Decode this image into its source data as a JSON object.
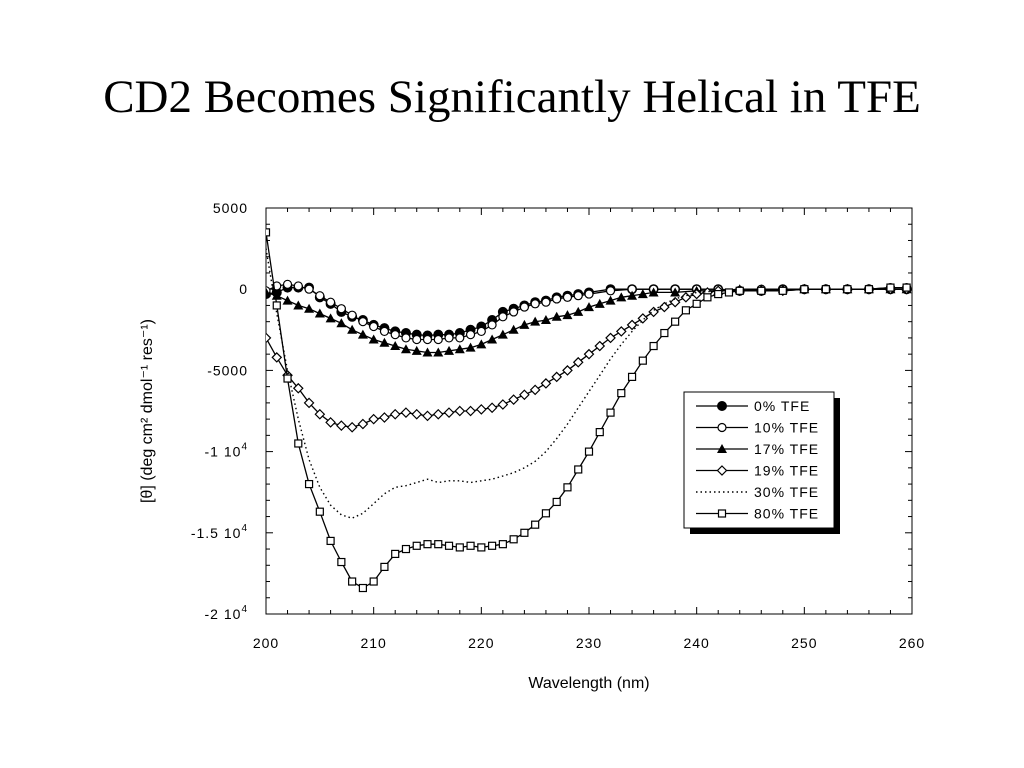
{
  "slide": {
    "title": "CD2 Becomes Significantly Helical in TFE"
  },
  "chart_data": {
    "type": "line",
    "xlabel": "Wavelength (nm)",
    "ylabel": "[θ] (deg cm² dmol⁻¹ res⁻¹)",
    "xlim": [
      200,
      260
    ],
    "ylim": [
      -20000,
      5000
    ],
    "x_ticks": [
      {
        "value": 200,
        "label": "200"
      },
      {
        "value": 210,
        "label": "210"
      },
      {
        "value": 220,
        "label": "220"
      },
      {
        "value": 230,
        "label": "230"
      },
      {
        "value": 240,
        "label": "240"
      },
      {
        "value": 250,
        "label": "250"
      },
      {
        "value": 260,
        "label": "260"
      }
    ],
    "y_ticks": [
      {
        "value": 5000,
        "label": "5000"
      },
      {
        "value": 0,
        "label": "0"
      },
      {
        "value": -5000,
        "label": "-5000"
      },
      {
        "value": -10000,
        "label": "-1 10",
        "sup": "4"
      },
      {
        "value": -15000,
        "label": "-1.5 10",
        "sup": "4"
      },
      {
        "value": -20000,
        "label": "-2 10",
        "sup": "4"
      }
    ],
    "grid": false,
    "legend_position": "right",
    "series": [
      {
        "name": "0% TFE",
        "marker": "filled-circle",
        "line": "solid",
        "points": [
          [
            200,
            -300
          ],
          [
            201,
            -200
          ],
          [
            202,
            100
          ],
          [
            203,
            100
          ],
          [
            204,
            100
          ],
          [
            205,
            -500
          ],
          [
            206,
            -900
          ],
          [
            207,
            -1400
          ],
          [
            208,
            -1700
          ],
          [
            209,
            -1900
          ],
          [
            210,
            -2200
          ],
          [
            211,
            -2400
          ],
          [
            212,
            -2600
          ],
          [
            213,
            -2700
          ],
          [
            214,
            -2800
          ],
          [
            215,
            -2850
          ],
          [
            216,
            -2800
          ],
          [
            217,
            -2800
          ],
          [
            218,
            -2700
          ],
          [
            219,
            -2500
          ],
          [
            220,
            -2300
          ],
          [
            221,
            -1900
          ],
          [
            222,
            -1400
          ],
          [
            223,
            -1200
          ],
          [
            224,
            -1000
          ],
          [
            225,
            -800
          ],
          [
            226,
            -700
          ],
          [
            227,
            -500
          ],
          [
            228,
            -400
          ],
          [
            229,
            -300
          ],
          [
            230,
            -200
          ],
          [
            232,
            0
          ],
          [
            234,
            0
          ],
          [
            236,
            0
          ],
          [
            238,
            0
          ],
          [
            240,
            0
          ],
          [
            242,
            0
          ],
          [
            244,
            -100
          ],
          [
            246,
            -100
          ],
          [
            248,
            0
          ],
          [
            250,
            0
          ],
          [
            252,
            0
          ],
          [
            254,
            0
          ],
          [
            256,
            0
          ],
          [
            258,
            0
          ],
          [
            259.5,
            0
          ]
        ]
      },
      {
        "name": "10% TFE",
        "marker": "open-circle",
        "line": "solid",
        "points": [
          [
            200,
            -100
          ],
          [
            201,
            200
          ],
          [
            202,
            300
          ],
          [
            203,
            200
          ],
          [
            204,
            0
          ],
          [
            205,
            -400
          ],
          [
            206,
            -800
          ],
          [
            207,
            -1200
          ],
          [
            208,
            -1600
          ],
          [
            209,
            -2000
          ],
          [
            210,
            -2300
          ],
          [
            211,
            -2600
          ],
          [
            212,
            -2800
          ],
          [
            213,
            -3000
          ],
          [
            214,
            -3100
          ],
          [
            215,
            -3100
          ],
          [
            216,
            -3100
          ],
          [
            217,
            -3000
          ],
          [
            218,
            -3000
          ],
          [
            219,
            -2800
          ],
          [
            220,
            -2600
          ],
          [
            221,
            -2200
          ],
          [
            222,
            -1700
          ],
          [
            223,
            -1400
          ],
          [
            224,
            -1100
          ],
          [
            225,
            -900
          ],
          [
            226,
            -800
          ],
          [
            227,
            -600
          ],
          [
            228,
            -500
          ],
          [
            229,
            -400
          ],
          [
            230,
            -300
          ],
          [
            232,
            -100
          ],
          [
            234,
            0
          ],
          [
            236,
            0
          ],
          [
            238,
            0
          ],
          [
            240,
            0
          ],
          [
            242,
            0
          ],
          [
            244,
            -100
          ],
          [
            246,
            0
          ],
          [
            248,
            0
          ],
          [
            250,
            0
          ],
          [
            252,
            0
          ],
          [
            254,
            0
          ],
          [
            256,
            0
          ],
          [
            258,
            100
          ],
          [
            259.5,
            100
          ]
        ]
      },
      {
        "name": "17% TFE",
        "marker": "filled-triangle",
        "line": "solid",
        "points": [
          [
            200,
            -200
          ],
          [
            201,
            -400
          ],
          [
            202,
            -700
          ],
          [
            203,
            -1000
          ],
          [
            204,
            -1200
          ],
          [
            205,
            -1500
          ],
          [
            206,
            -1800
          ],
          [
            207,
            -2100
          ],
          [
            208,
            -2500
          ],
          [
            209,
            -2800
          ],
          [
            210,
            -3100
          ],
          [
            211,
            -3300
          ],
          [
            212,
            -3500
          ],
          [
            213,
            -3700
          ],
          [
            214,
            -3800
          ],
          [
            215,
            -3900
          ],
          [
            216,
            -3900
          ],
          [
            217,
            -3800
          ],
          [
            218,
            -3700
          ],
          [
            219,
            -3600
          ],
          [
            220,
            -3400
          ],
          [
            221,
            -3100
          ],
          [
            222,
            -2800
          ],
          [
            223,
            -2500
          ],
          [
            224,
            -2200
          ],
          [
            225,
            -2000
          ],
          [
            226,
            -1900
          ],
          [
            227,
            -1700
          ],
          [
            228,
            -1600
          ],
          [
            229,
            -1400
          ],
          [
            230,
            -1100
          ],
          [
            231,
            -900
          ],
          [
            232,
            -700
          ],
          [
            233,
            -500
          ],
          [
            234,
            -400
          ],
          [
            235,
            -300
          ],
          [
            236,
            -200
          ],
          [
            238,
            -200
          ],
          [
            240,
            -100
          ],
          [
            242,
            -100
          ],
          [
            244,
            0
          ],
          [
            246,
            0
          ],
          [
            248,
            0
          ],
          [
            250,
            0
          ],
          [
            252,
            0
          ],
          [
            254,
            0
          ],
          [
            256,
            0
          ],
          [
            258,
            0
          ],
          [
            259.5,
            0
          ]
        ]
      },
      {
        "name": "19% TFE",
        "marker": "open-diamond",
        "line": "solid",
        "points": [
          [
            200,
            -3000
          ],
          [
            201,
            -4200
          ],
          [
            202,
            -5300
          ],
          [
            203,
            -6100
          ],
          [
            204,
            -7000
          ],
          [
            205,
            -7700
          ],
          [
            206,
            -8200
          ],
          [
            207,
            -8400
          ],
          [
            208,
            -8500
          ],
          [
            209,
            -8300
          ],
          [
            210,
            -8000
          ],
          [
            211,
            -7900
          ],
          [
            212,
            -7700
          ],
          [
            213,
            -7600
          ],
          [
            214,
            -7700
          ],
          [
            215,
            -7800
          ],
          [
            216,
            -7700
          ],
          [
            217,
            -7600
          ],
          [
            218,
            -7500
          ],
          [
            219,
            -7500
          ],
          [
            220,
            -7400
          ],
          [
            221,
            -7300
          ],
          [
            222,
            -7100
          ],
          [
            223,
            -6800
          ],
          [
            224,
            -6500
          ],
          [
            225,
            -6200
          ],
          [
            226,
            -5800
          ],
          [
            227,
            -5400
          ],
          [
            228,
            -5000
          ],
          [
            229,
            -4500
          ],
          [
            230,
            -4000
          ],
          [
            231,
            -3500
          ],
          [
            232,
            -3000
          ],
          [
            233,
            -2600
          ],
          [
            234,
            -2200
          ],
          [
            235,
            -1800
          ],
          [
            236,
            -1400
          ],
          [
            237,
            -1100
          ],
          [
            238,
            -800
          ],
          [
            239,
            -500
          ],
          [
            240,
            -300
          ],
          [
            241,
            -200
          ],
          [
            242,
            -100
          ],
          [
            244,
            -100
          ],
          [
            246,
            -100
          ],
          [
            248,
            -100
          ],
          [
            250,
            0
          ],
          [
            252,
            0
          ],
          [
            254,
            0
          ],
          [
            256,
            0
          ],
          [
            258,
            0
          ],
          [
            259.5,
            0
          ]
        ]
      },
      {
        "name": "30% TFE",
        "marker": "none",
        "line": "dotted",
        "points": [
          [
            200,
            2500
          ],
          [
            201,
            -1500
          ],
          [
            202,
            -5000
          ],
          [
            203,
            -8000
          ],
          [
            204,
            -10500
          ],
          [
            205,
            -12200
          ],
          [
            206,
            -13300
          ],
          [
            207,
            -13900
          ],
          [
            208,
            -14100
          ],
          [
            209,
            -13800
          ],
          [
            210,
            -13200
          ],
          [
            211,
            -12600
          ],
          [
            212,
            -12200
          ],
          [
            213,
            -12100
          ],
          [
            214,
            -11900
          ],
          [
            215,
            -11700
          ],
          [
            216,
            -11900
          ],
          [
            217,
            -11800
          ],
          [
            218,
            -11800
          ],
          [
            219,
            -11900
          ],
          [
            220,
            -11800
          ],
          [
            221,
            -11700
          ],
          [
            222,
            -11500
          ],
          [
            223,
            -11300
          ],
          [
            224,
            -11000
          ],
          [
            225,
            -10600
          ],
          [
            226,
            -10000
          ],
          [
            227,
            -9200
          ],
          [
            228,
            -8300
          ],
          [
            229,
            -7300
          ],
          [
            230,
            -6300
          ],
          [
            231,
            -5300
          ],
          [
            232,
            -4300
          ],
          [
            233,
            -3400
          ],
          [
            234,
            -2600
          ],
          [
            235,
            -1900
          ],
          [
            236,
            -1300
          ],
          [
            237,
            -900
          ],
          [
            238,
            -600
          ],
          [
            239,
            -400
          ],
          [
            240,
            -200
          ],
          [
            242,
            -100
          ],
          [
            244,
            -100
          ],
          [
            246,
            -100
          ],
          [
            248,
            0
          ],
          [
            250,
            0
          ],
          [
            252,
            0
          ],
          [
            254,
            0
          ],
          [
            256,
            0
          ],
          [
            258,
            0
          ],
          [
            259.5,
            0
          ]
        ]
      },
      {
        "name": "80% TFE",
        "marker": "open-square",
        "line": "solid",
        "points": [
          [
            200,
            3500
          ],
          [
            201,
            -1000
          ],
          [
            202,
            -5500
          ],
          [
            203,
            -9500
          ],
          [
            204,
            -12000
          ],
          [
            205,
            -13700
          ],
          [
            206,
            -15500
          ],
          [
            207,
            -16800
          ],
          [
            208,
            -18000
          ],
          [
            209,
            -18400
          ],
          [
            210,
            -18000
          ],
          [
            211,
            -17100
          ],
          [
            212,
            -16300
          ],
          [
            213,
            -16000
          ],
          [
            214,
            -15800
          ],
          [
            215,
            -15700
          ],
          [
            216,
            -15700
          ],
          [
            217,
            -15800
          ],
          [
            218,
            -15900
          ],
          [
            219,
            -15800
          ],
          [
            220,
            -15900
          ],
          [
            221,
            -15800
          ],
          [
            222,
            -15700
          ],
          [
            223,
            -15400
          ],
          [
            224,
            -15000
          ],
          [
            225,
            -14500
          ],
          [
            226,
            -13800
          ],
          [
            227,
            -13100
          ],
          [
            228,
            -12200
          ],
          [
            229,
            -11100
          ],
          [
            230,
            -10000
          ],
          [
            231,
            -8800
          ],
          [
            232,
            -7600
          ],
          [
            233,
            -6400
          ],
          [
            234,
            -5400
          ],
          [
            235,
            -4400
          ],
          [
            236,
            -3500
          ],
          [
            237,
            -2700
          ],
          [
            238,
            -2000
          ],
          [
            239,
            -1300
          ],
          [
            240,
            -900
          ],
          [
            241,
            -500
          ],
          [
            242,
            -300
          ],
          [
            243,
            -200
          ],
          [
            244,
            -100
          ],
          [
            246,
            -100
          ],
          [
            248,
            -100
          ],
          [
            250,
            0
          ],
          [
            252,
            0
          ],
          [
            254,
            0
          ],
          [
            256,
            0
          ],
          [
            258,
            100
          ],
          [
            259.5,
            100
          ]
        ]
      }
    ]
  }
}
